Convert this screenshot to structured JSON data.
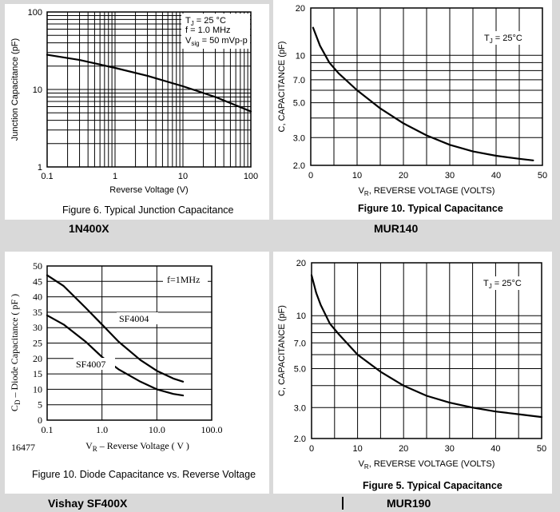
{
  "chart_data": [
    {
      "type": "line",
      "xlabel": "Reverse Voltage (V)",
      "ylabel": "Junction Capacitance (pF)",
      "x_scale": "log",
      "y_scale": "log",
      "xlim": [
        0.1,
        100
      ],
      "ylim": [
        1,
        100
      ],
      "x_ticks": [
        "0.1",
        "1",
        "10",
        "100"
      ],
      "y_ticks": [
        "1",
        "10",
        "100"
      ],
      "annotation": {
        "line1": "T",
        "line1_sub": "J",
        "line1_rest": " = 25 °C",
        "line2": "f = 1.0 MHz",
        "line3": "V",
        "line3_sub": "sig",
        "line3_rest": " = 50 mVp-p"
      },
      "series": [
        {
          "x": [
            0.1,
            0.3,
            1,
            3,
            10,
            30,
            100
          ],
          "y": [
            28,
            24,
            19,
            15,
            11,
            8,
            5.2
          ]
        }
      ],
      "caption": "Figure 6. Typical Junction Capacitance",
      "device": "1N400X"
    },
    {
      "type": "line",
      "xlabel": "V",
      "xlabel_sub": "R",
      "xlabel_rest": ", REVERSE VOLTAGE (VOLTS)",
      "ylabel": "C, CAPACITANCE (pF)",
      "y_scale": "log",
      "xlim": [
        0,
        50
      ],
      "ylim": [
        2,
        20
      ],
      "x_ticks": [
        "0",
        "10",
        "20",
        "30",
        "40",
        "50"
      ],
      "y_ticks": [
        {
          "v": 2,
          "t": "2.0"
        },
        {
          "v": 3,
          "t": "3.0"
        },
        {
          "v": 5,
          "t": "5.0"
        },
        {
          "v": 7,
          "t": "7.0"
        },
        {
          "v": 10,
          "t": "10"
        },
        {
          "v": 20,
          "t": "20"
        }
      ],
      "annotation": {
        "line1": "T",
        "line1_sub": "J",
        "line1_rest": " = 25°C"
      },
      "series": [
        {
          "x": [
            0.5,
            2,
            4,
            6,
            10,
            15,
            20,
            25,
            30,
            35,
            40,
            45,
            48
          ],
          "y": [
            15,
            11.5,
            9,
            7.7,
            6.0,
            4.6,
            3.7,
            3.1,
            2.7,
            2.45,
            2.3,
            2.2,
            2.15
          ]
        }
      ],
      "caption": "Figure 10. Typical Capacitance",
      "device": "MUR140"
    },
    {
      "type": "line",
      "xlabel": "V",
      "xlabel_sub": "R",
      "xlabel_rest": " – Reverse Voltage ( V )",
      "ylabel": "C",
      "ylabel_sub": "D",
      "ylabel_rest": " – Diode Capacitance ( pF )",
      "x_scale": "log",
      "xlim": [
        0.1,
        100
      ],
      "ylim": [
        0,
        50
      ],
      "x_ticks": [
        "0.1",
        "1.0",
        "10.0",
        "100.0"
      ],
      "y_ticks": [
        "0",
        "5",
        "10",
        "15",
        "20",
        "25",
        "30",
        "35",
        "40",
        "45",
        "50"
      ],
      "annotation": {
        "line1": "f=1MHz"
      },
      "corner_code": "16477",
      "series": [
        {
          "name": "SF4004",
          "x": [
            0.1,
            0.2,
            0.5,
            1,
            2,
            5,
            10,
            20,
            30
          ],
          "y": [
            47,
            43.5,
            36.5,
            31,
            25.5,
            19.5,
            16,
            13.5,
            12.5
          ]
        },
        {
          "name": "SF4007",
          "x": [
            0.1,
            0.2,
            0.5,
            1,
            2,
            5,
            10,
            20,
            30
          ],
          "y": [
            34,
            31,
            25.5,
            20.5,
            16.5,
            12.5,
            10,
            8.5,
            8
          ]
        }
      ],
      "caption": "Figure 10. Diode Capacitance vs. Reverse Voltage",
      "device": "Vishay SF400X"
    },
    {
      "type": "line",
      "xlabel": "V",
      "xlabel_sub": "R",
      "xlabel_rest": ", REVERSE VOLTAGE (VOLTS)",
      "ylabel": "C, CAPACITANCE (pF)",
      "y_scale": "log",
      "xlim": [
        0,
        50
      ],
      "ylim": [
        2,
        20
      ],
      "x_ticks": [
        "0",
        "10",
        "20",
        "30",
        "40",
        "50"
      ],
      "y_ticks": [
        {
          "v": 2,
          "t": "2.0"
        },
        {
          "v": 3,
          "t": "3.0"
        },
        {
          "v": 5,
          "t": "5.0"
        },
        {
          "v": 7,
          "t": "7.0"
        },
        {
          "v": 10,
          "t": "10"
        },
        {
          "v": 20,
          "t": "20"
        }
      ],
      "annotation": {
        "line1": "T",
        "line1_sub": "J",
        "line1_rest": " = 25°C"
      },
      "series": [
        {
          "x": [
            0,
            1,
            2,
            4,
            6,
            10,
            15,
            20,
            25,
            30,
            35,
            40,
            45,
            50
          ],
          "y": [
            17,
            13.5,
            11.5,
            9,
            7.8,
            6.0,
            4.8,
            4.0,
            3.5,
            3.2,
            3.0,
            2.85,
            2.75,
            2.65
          ]
        }
      ],
      "caption": "Figure 5. Typical Capacitance",
      "device": "MUR190"
    }
  ]
}
